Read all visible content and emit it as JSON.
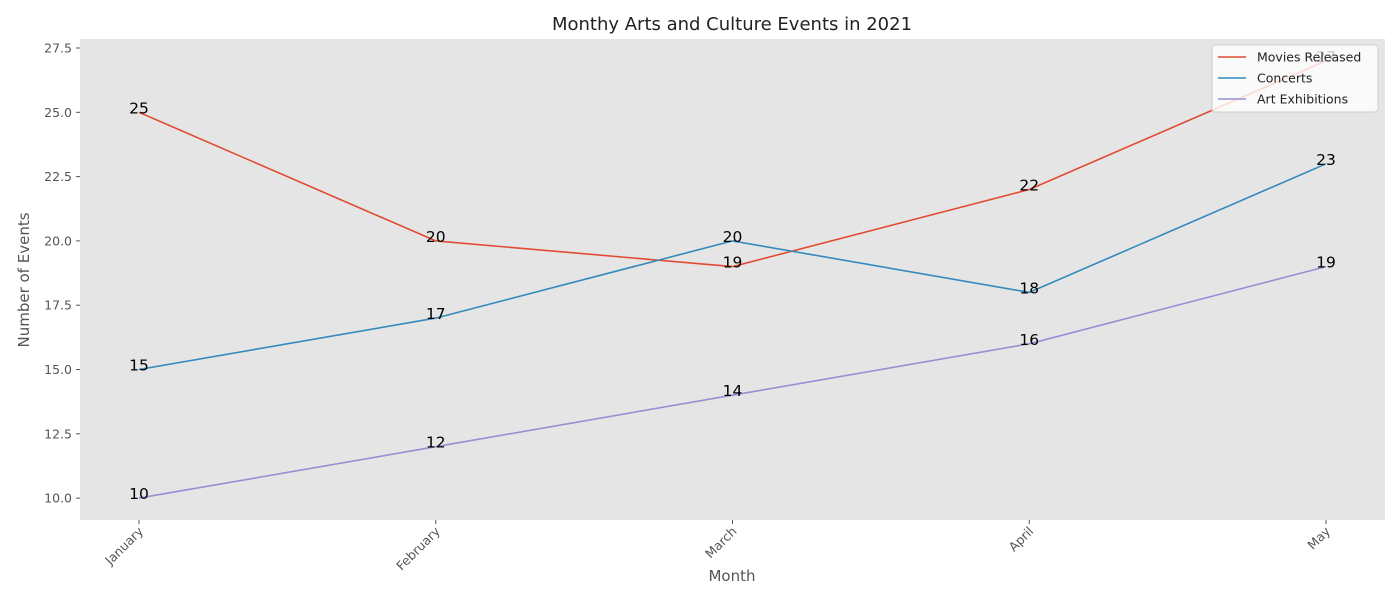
{
  "chart_data": {
    "type": "line",
    "title": "Monthy Arts and Culture Events in 2021",
    "xlabel": "Month",
    "ylabel": "Number of Events",
    "categories": [
      "January",
      "February",
      "March",
      "April",
      "May"
    ],
    "ylim": [
      9.15,
      27.85
    ],
    "yticks": [
      10.0,
      12.5,
      15.0,
      17.5,
      20.0,
      22.5,
      25.0,
      27.5
    ],
    "ytick_labels": [
      "10.0",
      "12.5",
      "15.0",
      "17.5",
      "20.0",
      "22.5",
      "25.0",
      "27.5"
    ],
    "grid": false,
    "legend_position": "top-right",
    "background": "#e5e5e5",
    "series": [
      {
        "name": "Movies Released",
        "values": [
          25,
          20,
          19,
          22,
          27
        ],
        "labels": [
          "25",
          "20",
          "19",
          "22",
          "27"
        ],
        "color": "#e24a33"
      },
      {
        "name": "Concerts",
        "values": [
          15,
          17,
          20,
          18,
          23
        ],
        "labels": [
          "15",
          "17",
          "20",
          "18",
          "23"
        ],
        "color": "#348abd"
      },
      {
        "name": "Art Exhibitions",
        "values": [
          10,
          12,
          14,
          16,
          19
        ],
        "labels": [
          "10",
          "12",
          "14",
          "16",
          "19"
        ],
        "color": "#988ed5"
      }
    ]
  }
}
